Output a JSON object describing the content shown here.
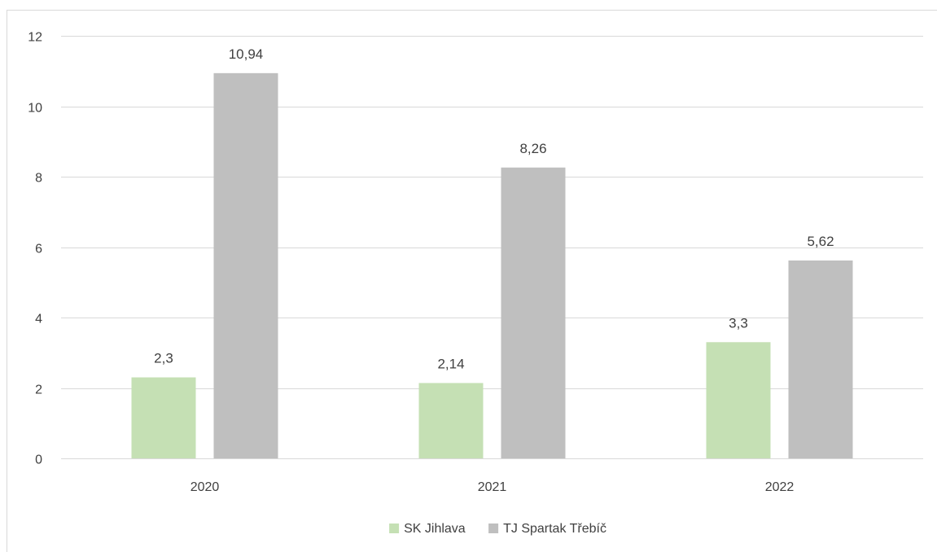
{
  "chart_data": {
    "type": "bar",
    "title": "",
    "xlabel": "",
    "ylabel": "",
    "categories": [
      "2020",
      "2021",
      "2022"
    ],
    "series": [
      {
        "name": "SK Jihlava",
        "color": "#c5e0b4",
        "values": [
          2.3,
          2.14,
          3.3
        ],
        "labels": [
          "2,3",
          "2,14",
          "3,3"
        ]
      },
      {
        "name": "TJ Spartak Třebíč",
        "color": "#bfbfbf",
        "values": [
          10.94,
          8.26,
          5.62
        ],
        "labels": [
          "10,94",
          "8,26",
          "5,62"
        ]
      }
    ],
    "ylim": [
      0,
      12
    ],
    "yticks": [
      0,
      2,
      4,
      6,
      8,
      10,
      12
    ],
    "ytick_labels": [
      "0",
      "2",
      "4",
      "6",
      "8",
      "10",
      "12"
    ],
    "grid": true,
    "legend_position": "bottom"
  }
}
